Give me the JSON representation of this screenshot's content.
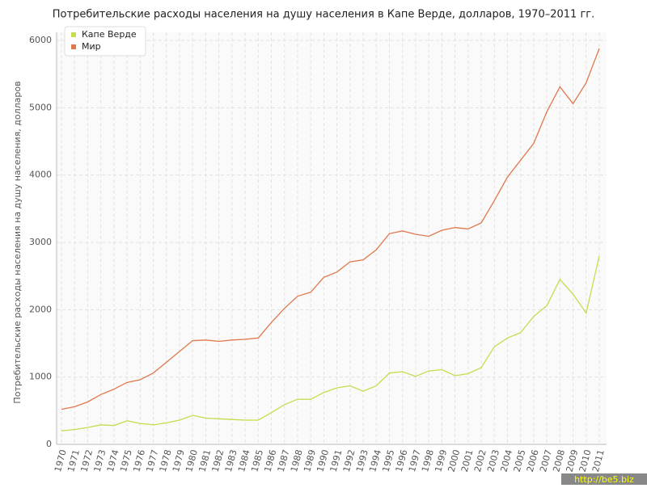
{
  "chart_data": {
    "type": "line",
    "title": "Потребительские расходы населения на душу населения в Капе Верде, долларов, 1970–2011 гг.",
    "y_label": "Потребительские расходы населения на душу населения, долларов",
    "watermark": "http://be5.biz",
    "categories": [
      "1970",
      "1971",
      "1972",
      "1973",
      "1974",
      "1975",
      "1976",
      "1977",
      "1978",
      "1979",
      "1980",
      "1981",
      "1982",
      "1983",
      "1984",
      "1985",
      "1986",
      "1987",
      "1988",
      "1989",
      "1990",
      "1991",
      "1992",
      "1993",
      "1994",
      "1995",
      "1996",
      "1997",
      "1998",
      "1999",
      "2000",
      "2001",
      "2002",
      "2003",
      "2004",
      "2005",
      "2006",
      "2007",
      "2008",
      "2009",
      "2010",
      "2011"
    ],
    "series": [
      {
        "name": "Капе Верде",
        "color": "#c5dc4e",
        "values": [
          200,
          220,
          250,
          290,
          280,
          350,
          310,
          290,
          320,
          360,
          430,
          390,
          380,
          370,
          360,
          360,
          470,
          590,
          670,
          670,
          770,
          840,
          870,
          790,
          870,
          1060,
          1080,
          1010,
          1090,
          1110,
          1020,
          1050,
          1140,
          1450,
          1580,
          1660,
          1900,
          2060,
          2450,
          2230,
          1950,
          2800
        ]
      },
      {
        "name": "Мир",
        "color": "#e0784e",
        "values": [
          520,
          560,
          630,
          740,
          820,
          920,
          960,
          1060,
          1220,
          1380,
          1540,
          1550,
          1530,
          1550,
          1560,
          1580,
          1810,
          2020,
          2200,
          2260,
          2480,
          2560,
          2710,
          2740,
          2890,
          3130,
          3170,
          3120,
          3090,
          3180,
          3220,
          3200,
          3290,
          3620,
          3970,
          4220,
          4470,
          4940,
          5310,
          5060,
          5370,
          5880
        ]
      }
    ],
    "ylim": [
      0,
      6000
    ],
    "yticks": [
      0,
      1000,
      2000,
      3000,
      4000,
      5000,
      6000
    ],
    "grid": true,
    "legend": "top-left"
  }
}
